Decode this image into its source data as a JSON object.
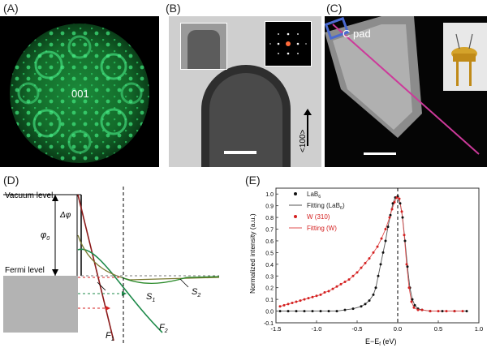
{
  "panels": {
    "a": {
      "label": "(A)",
      "center_text": "001"
    },
    "b": {
      "label": "(B)",
      "direction_text": "<100>"
    },
    "c": {
      "label": "(C)",
      "pad_text": "C pad"
    },
    "d": {
      "label": "(D)",
      "vacuum_text": "Vacuum level",
      "fermi_text": "Fermi level",
      "dphi_text": "Δφ",
      "phi0_text": "φ",
      "phi0_sub": "0",
      "s1_text": "S",
      "s1_sub": "1",
      "s2_text": "S",
      "s2_sub": "2",
      "f1_text": "F",
      "f1_sub": "1",
      "f2_text": "F",
      "f2_sub": "2"
    },
    "e": {
      "label": "(E)"
    }
  },
  "chart_data": {
    "type": "scatter",
    "xlabel": "E−E",
    "xlabel_sub": "f",
    "xlabel_unit": " (eV)",
    "ylabel": "Normalized intensity (a.u.)",
    "xlim": [
      -1.5,
      1.0
    ],
    "ylim": [
      -0.1,
      1.05
    ],
    "xticks": [
      "-1.5",
      "-1.0",
      "-0.5",
      "0.0",
      "0.5",
      "1.0"
    ],
    "yticks": [
      "-0.1",
      "0.0",
      "0.1",
      "0.2",
      "0.3",
      "0.4",
      "0.5",
      "0.6",
      "0.7",
      "0.8",
      "0.9",
      "1.0"
    ],
    "legend": [
      {
        "text": "LaB",
        "sub": "6",
        "suffix": "",
        "color": "#111111",
        "kind": "marker"
      },
      {
        "text": "Fitting (LaB",
        "sub": "6",
        "suffix": ")",
        "color": "#555555",
        "kind": "line"
      },
      {
        "text": "W (310)",
        "sub": "",
        "suffix": "",
        "color": "#d42020",
        "kind": "marker"
      },
      {
        "text": "Fitting (W)",
        "sub": "",
        "suffix": "",
        "color": "#e05050",
        "kind": "line"
      }
    ],
    "series": [
      {
        "name": "LaB6",
        "x": [
          -1.45,
          -1.35,
          -1.25,
          -1.15,
          -1.05,
          -0.95,
          -0.85,
          -0.75,
          -0.65,
          -0.55,
          -0.45,
          -0.4,
          -0.35,
          -0.3,
          -0.27,
          -0.24,
          -0.21,
          -0.18,
          -0.15,
          -0.12,
          -0.09,
          -0.06,
          -0.03,
          0.0,
          0.03,
          0.06,
          0.09,
          0.12,
          0.15,
          0.18,
          0.21,
          0.25,
          0.3,
          0.4,
          0.55,
          0.7,
          0.85
        ],
        "y": [
          0.0,
          0.0,
          0.0,
          0.0,
          0.0,
          0.0,
          0.0,
          0.0,
          0.01,
          0.02,
          0.04,
          0.06,
          0.09,
          0.14,
          0.2,
          0.3,
          0.4,
          0.5,
          0.6,
          0.72,
          0.82,
          0.92,
          0.97,
          0.98,
          0.92,
          0.8,
          0.6,
          0.38,
          0.2,
          0.1,
          0.05,
          0.02,
          0.01,
          0.0,
          0.0,
          0.0,
          0.0
        ]
      },
      {
        "name": "W (310)",
        "x": [
          -1.45,
          -1.4,
          -1.35,
          -1.3,
          -1.25,
          -1.2,
          -1.15,
          -1.1,
          -1.05,
          -1.0,
          -0.95,
          -0.9,
          -0.85,
          -0.8,
          -0.75,
          -0.7,
          -0.65,
          -0.6,
          -0.55,
          -0.5,
          -0.45,
          -0.4,
          -0.35,
          -0.3,
          -0.25,
          -0.2,
          -0.15,
          -0.1,
          -0.07,
          -0.04,
          -0.01,
          0.02,
          0.05,
          0.08,
          0.11,
          0.14,
          0.17,
          0.2,
          0.25,
          0.3,
          0.4,
          0.5,
          0.6,
          0.7,
          0.8
        ],
        "y": [
          0.04,
          0.05,
          0.06,
          0.07,
          0.08,
          0.09,
          0.1,
          0.11,
          0.12,
          0.13,
          0.14,
          0.16,
          0.17,
          0.19,
          0.21,
          0.23,
          0.25,
          0.27,
          0.3,
          0.33,
          0.37,
          0.41,
          0.45,
          0.5,
          0.55,
          0.62,
          0.7,
          0.8,
          0.87,
          0.93,
          0.97,
          0.96,
          0.85,
          0.65,
          0.4,
          0.2,
          0.08,
          0.03,
          0.01,
          0.01,
          0.0,
          0.0,
          0.0,
          0.0,
          0.0
        ]
      }
    ]
  }
}
